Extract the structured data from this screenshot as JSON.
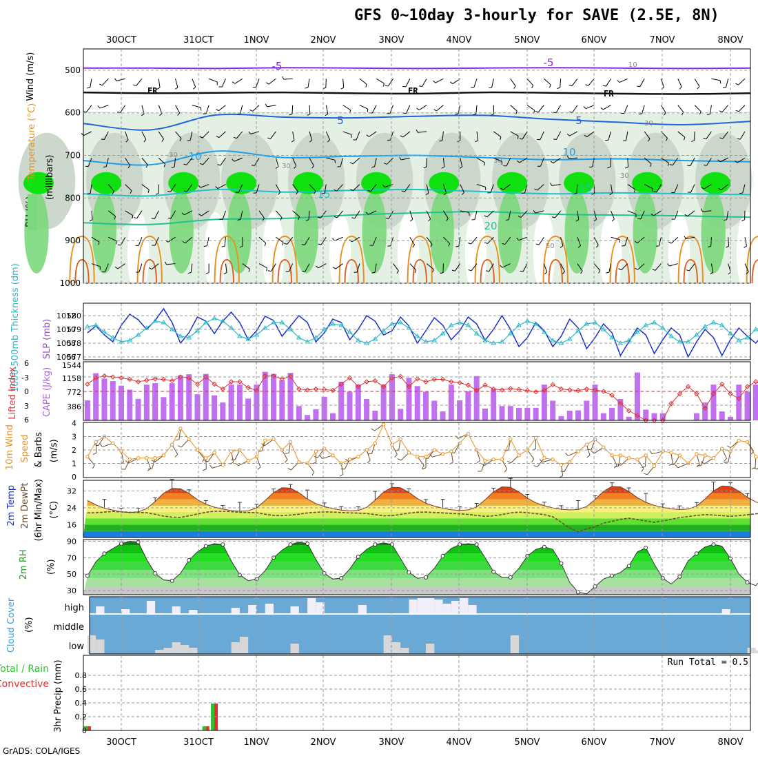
{
  "title": "GFS 0~10day 3-hourly for SAVE (2.5E, 8N)",
  "credit": "GrADS: COLA/IGES",
  "date_labels": [
    "30OCT",
    "31OCT",
    "1NOV",
    "2NOV",
    "3NOV",
    "4NOV",
    "5NOV",
    "6NOV",
    "7NOV",
    "8NOV"
  ],
  "colors": {
    "rh_light": "#e4f0e4",
    "rh_mid": "#c8d4c8",
    "rh_green": "#7cd87c",
    "rh_bright": "#10e010",
    "temp_line_1": "#8a2be2",
    "temp_line_2": "#1e64dc",
    "temp_line_3": "#1e9ee6",
    "temp_line_4": "#20c0c8",
    "temp_line_5": "#20c090",
    "temp_warm": "#e8901e",
    "slp": "#1a2fc8",
    "thickness": "#2ab8c8",
    "cape": "#c070f0",
    "lifted_index": "#e03030",
    "wind": "#e8901e",
    "precip_total": "#30c030",
    "precip_conv": "#e03030",
    "cloud_bg": "#6aa8d6",
    "cloud_white": "#f0eef8",
    "cloud_grey": "#d8d8d8"
  },
  "chart_data": [
    {
      "type": "heatmap",
      "panel": "profile",
      "ylabel": [
        "RH (%)",
        "Temperature (°C)",
        "Wind (m/s)"
      ],
      "yunit": "(millibars)",
      "yticks": [
        500,
        600,
        700,
        800,
        900,
        1000
      ],
      "ylim": [
        1000,
        450
      ],
      "contour_labels": {
        "isotherms": [
          "-5",
          "-5",
          "5",
          "5",
          "10",
          "10",
          "15",
          "15",
          "20"
        ],
        "freezing": [
          "FR",
          "FR",
          "FR"
        ],
        "rh": [
          "10",
          "30",
          "30",
          "30",
          "30",
          "30",
          "50"
        ]
      },
      "isotherms_mb": [
        {
          "label": "-5",
          "values": [
            495,
            495,
            496,
            494,
            495,
            496,
            495,
            494,
            495,
            496,
            495
          ]
        },
        {
          "label": "FR",
          "values": [
            552,
            554,
            553,
            552,
            554,
            555,
            552,
            553,
            555,
            556,
            554
          ]
        },
        {
          "label": "5",
          "values": [
            625,
            640,
            605,
            610,
            612,
            608,
            606,
            615,
            622,
            628,
            620
          ]
        },
        {
          "label": "10",
          "values": [
            712,
            722,
            690,
            705,
            702,
            700,
            705,
            710,
            708,
            712,
            715
          ]
        },
        {
          "label": "15",
          "values": [
            790,
            795,
            780,
            786,
            782,
            780,
            785,
            790,
            788,
            790,
            792
          ]
        },
        {
          "label": "20",
          "values": [
            858,
            862,
            850,
            848,
            840,
            835,
            832,
            838,
            840,
            842,
            845
          ]
        }
      ]
    },
    {
      "type": "line",
      "panel": "slp_thickness",
      "ylabel_left": "1000-500mb Thickness (dm)",
      "ylabel_right": "SLP (mb)",
      "left_ticks": [
        "580",
        "579",
        "578",
        "577"
      ],
      "right_ticks": [
        "1012",
        "1010",
        "1008",
        "1006"
      ],
      "series": [
        {
          "name": "SLP (mb)",
          "values": [
            1009.5,
            1010.5,
            1009.2,
            1008.2,
            1010.6,
            1012.2,
            1011.4,
            1010.0,
            1011.3,
            1013.0,
            1011.0,
            1008.0,
            1009.5,
            1011.8,
            1011.2,
            1009.4,
            1011.2,
            1012.5,
            1011.0,
            1008.5,
            1009.8,
            1011.9,
            1011.3,
            1009.0,
            1010.5,
            1012.0,
            1011.0,
            1008.2,
            1009.5,
            1011.5,
            1011.0,
            1008.5,
            1010.0,
            1012.0,
            1011.2,
            1009.2,
            1009.8,
            1011.8,
            1010.5,
            1008.0,
            1009.8,
            1011.7,
            1010.6,
            1008.5,
            1009.8,
            1011.8,
            1010.8,
            1008.4,
            1010.0,
            1012.0,
            1010.0,
            1007.5,
            1008.8,
            1011.0,
            1009.8,
            1007.5,
            1009.0,
            1011.5,
            1010.2,
            1007.2,
            1008.8,
            1010.8,
            1009.5,
            1006.2,
            1008.2,
            1010.2,
            1009.2,
            1006.5,
            1008.5,
            1010.2,
            1009.2,
            1006.0,
            1008.2,
            1010.0,
            1008.8,
            1006.2,
            1008.5,
            1010.2,
            1009.0,
            1008.0,
            1009.5
          ]
        },
        {
          "name": "1000-500mb Thickness (dm)",
          "values": [
            579.2,
            579.3,
            578.8,
            578.4,
            578.1,
            578.2,
            578.6,
            579.1,
            579.6,
            579.5,
            579.0,
            578.5,
            578.4,
            578.9,
            579.5,
            579.8,
            579.6,
            579.1,
            578.5,
            578.3,
            578.6,
            579.1,
            579.5,
            579.5,
            579.0,
            578.4,
            578.1,
            578.4,
            579.0,
            579.4,
            579.3,
            578.8,
            578.2,
            578.0,
            578.3,
            578.9,
            579.4,
            579.5,
            579.1,
            578.5,
            578.1,
            578.2,
            578.7,
            579.3,
            579.5,
            579.3,
            578.7,
            578.2,
            578.0,
            578.1,
            578.7,
            579.3,
            579.6,
            579.4,
            578.8,
            578.2,
            578.0,
            578.3,
            578.9,
            579.4,
            579.5,
            579.0,
            578.4,
            578.0,
            578.2,
            578.8,
            579.3,
            579.5,
            579.1,
            578.5,
            578.1,
            578.1,
            578.6,
            579.2,
            579.5,
            579.3,
            578.7,
            578.2,
            578.4,
            579.0,
            579.2
          ]
        }
      ]
    },
    {
      "type": "bar",
      "panel": "cape_li",
      "ylabel_left": "Lifted Index",
      "ylabel_right": "CAPE (J/kg)",
      "left_ticks": [
        "6",
        "-3",
        "0",
        "3",
        "6"
      ],
      "right_ticks": [
        "1544",
        "1158",
        "772",
        "386"
      ],
      "series": [
        {
          "name": "CAPE (J/kg)",
          "values": [
            560,
            1320,
            1170,
            1100,
            970,
            860,
            600,
            1000,
            1040,
            650,
            1040,
            1260,
            1290,
            730,
            1300,
            700,
            500,
            1000,
            1000,
            610,
            1000,
            1360,
            1300,
            1120,
            1330,
            400,
            150,
            310,
            660,
            200,
            1080,
            800,
            1000,
            600,
            270,
            1000,
            1290,
            320,
            1190,
            960,
            800,
            550,
            250,
            1000,
            560,
            810,
            1240,
            330,
            880,
            400,
            400,
            350,
            350,
            350,
            1000,
            550,
            120,
            270,
            280,
            550,
            1000,
            200,
            350,
            600,
            100,
            1340,
            300,
            200,
            200,
            0,
            0,
            0,
            200,
            500,
            1000,
            250,
            100,
            1000,
            800,
            1000,
            1200,
            880
          ]
        },
        {
          "name": "Lifted Index",
          "values": [
            -1.5,
            -2.8,
            -3.2,
            -3.0,
            -2.8,
            -2.5,
            -2.0,
            -2.3,
            -2.6,
            -2.5,
            -2.2,
            -3.0,
            -2.8,
            -1.5,
            -3.0,
            -1.5,
            -0.5,
            -2.0,
            -2.0,
            -0.8,
            -0.2,
            -3.2,
            -3.2,
            -2.6,
            -3.1,
            -0.5,
            -0.3,
            -0.5,
            -0.4,
            -0.2,
            -1.5,
            -2.8,
            -1.0,
            -2.0,
            -2.2,
            -1.0,
            -2.8,
            -3.1,
            -1.0,
            -2.6,
            -2.0,
            -2.5,
            -2.5,
            -2.0,
            -1.8,
            -1.3,
            -0.2,
            -1.3,
            -0.5,
            -0.3,
            -0.6,
            -0.4,
            -0.2,
            0.1,
            -0.2,
            -1.4,
            -0.5,
            -0.3,
            -0.2,
            -0.5,
            -0.3,
            0.0,
            0.8,
            2.5,
            4.0,
            5.0,
            6.0,
            6.0,
            6.0,
            2.5,
            0.5,
            -1.0,
            0.5,
            3.5,
            0.5,
            -1.5,
            0.5,
            1.5,
            -1.0,
            -2.0,
            -1.0,
            -1.5
          ]
        }
      ]
    },
    {
      "type": "line",
      "panel": "wind10m",
      "ylabel": [
        "10m Wind",
        "Speed",
        "& Barbs",
        "(m/s)"
      ],
      "yticks": [
        "4",
        "3",
        "2",
        "1",
        "0"
      ],
      "ylim": [
        0,
        4
      ],
      "series": [
        {
          "name": "10m Wind Speed",
          "values": [
            1.5,
            2.6,
            3.0,
            2.5,
            1.9,
            1.3,
            1.4,
            1.4,
            1.4,
            1.6,
            2.4,
            3.6,
            2.8,
            2.0,
            1.4,
            1.8,
            0.9,
            1.9,
            2.0,
            1.2,
            1.5,
            2.7,
            2.8,
            2.0,
            2.6,
            1.1,
            1.0,
            1.9,
            2.1,
            1.6,
            1.0,
            1.3,
            1.5,
            2.0,
            2.5,
            3.9,
            2.4,
            2.8,
            1.8,
            1.5,
            1.5,
            2.0,
            1.7,
            1.9,
            2.5,
            3.2,
            2.0,
            1.2,
            1.3,
            1.3,
            2.8,
            1.6,
            2.0,
            2.9,
            1.4,
            1.3,
            0.9,
            1.1,
            1.9,
            2.4,
            2.8,
            2.2,
            1.6,
            1.6,
            1.4,
            1.3,
            1.6,
            0.8,
            1.9,
            1.8,
            1.6,
            1.0,
            1.7,
            1.6,
            1.4,
            2.1,
            1.9,
            2.7,
            2.6,
            1.5,
            1.2
          ]
        }
      ]
    },
    {
      "type": "area",
      "panel": "temperature2m",
      "ylabel": [
        "2m Temp",
        "2m DewPt",
        "(6hr Min/Max)",
        "(°C)"
      ],
      "yticks": [
        "32",
        "24",
        "16"
      ],
      "ylim": [
        10,
        37
      ],
      "series": [
        {
          "name": "2m Temp",
          "values": [
            27.5,
            25.4,
            23.8,
            22.9,
            22.1,
            21.8,
            22.1,
            23.6,
            27.0,
            30.9,
            33.2,
            33.0,
            30.8,
            27.9,
            25.7,
            24.3,
            23.4,
            22.7,
            22.4,
            22.6,
            24.0,
            27.4,
            31.2,
            33.5,
            33.3,
            31.1,
            28.2,
            26.0,
            24.6,
            23.6,
            22.9,
            22.6,
            22.8,
            24.2,
            27.6,
            31.4,
            33.7,
            33.5,
            31.3,
            28.4,
            26.2,
            24.8,
            23.8,
            23.1,
            22.8,
            23.0,
            24.4,
            27.8,
            31.6,
            33.9,
            33.7,
            31.5,
            28.6,
            26.4,
            25.0,
            24.0,
            23.3,
            23.0,
            23.2,
            24.6,
            28.0,
            31.8,
            34.1,
            33.9,
            31.7,
            28.8,
            26.6,
            25.2,
            24.2,
            23.5,
            23.2,
            23.4,
            24.8,
            28.2,
            32.0,
            34.3,
            34.1,
            31.9,
            29.0,
            26.8,
            25.4
          ]
        },
        {
          "name": "2m DewPt",
          "values": [
            21.6,
            21.7,
            22.0,
            22.3,
            22.1,
            21.9,
            21.8,
            21.7,
            21.0,
            20.1,
            19.6,
            19.5,
            20.2,
            21.1,
            21.9,
            22.4,
            22.4,
            22.2,
            21.9,
            21.8,
            21.7,
            21.0,
            20.4,
            20.3,
            20.6,
            21.0,
            21.6,
            21.9,
            22.1,
            22.0,
            21.8,
            21.6,
            21.5,
            21.3,
            20.8,
            20.2,
            20.3,
            20.9,
            21.5,
            21.9,
            22.0,
            21.8,
            21.6,
            21.4,
            21.2,
            20.9,
            20.4,
            20.0,
            20.2,
            20.8,
            21.6,
            22.0,
            21.7,
            21.3,
            20.8,
            19.8,
            17.2,
            14.5,
            12.6,
            14.1,
            15.0,
            16.8,
            17.6,
            18.6,
            19.1,
            18.5,
            17.8,
            17.2,
            17.8,
            18.6,
            19.4,
            19.9,
            20.4,
            20.8,
            20.6,
            20.3,
            20.0,
            20.3,
            20.7,
            21.2,
            21.6
          ]
        }
      ]
    },
    {
      "type": "area",
      "panel": "rh2m",
      "ylabel": [
        "2m RH",
        "(%)"
      ],
      "yticks": [
        "90",
        "70",
        "50",
        "30"
      ],
      "ylim": [
        25,
        92
      ],
      "series": [
        {
          "name": "2m RH",
          "values": [
            48,
            65,
            75,
            81,
            87,
            90,
            89,
            68,
            51,
            43,
            42,
            51,
            67,
            77,
            84,
            87,
            86,
            66,
            49,
            42,
            44,
            54,
            70,
            79,
            86,
            89,
            87,
            68,
            51,
            44,
            45,
            56,
            71,
            80,
            86,
            88,
            86,
            69,
            52,
            45,
            46,
            57,
            72,
            81,
            86,
            87,
            86,
            70,
            53,
            46,
            46,
            57,
            72,
            80,
            83,
            80,
            63,
            40,
            28,
            26,
            35,
            44,
            48,
            52,
            60,
            77,
            82,
            62,
            45,
            38,
            47,
            66,
            75,
            83,
            86,
            84,
            69,
            50,
            40,
            36,
            48,
            58,
            72,
            83,
            88
          ]
        }
      ]
    },
    {
      "type": "bar",
      "panel": "cloud_cover",
      "ylabel": [
        "Cloud Cover",
        "(%)"
      ],
      "row_labels": [
        "high",
        "middle",
        "low"
      ]
    },
    {
      "type": "bar",
      "panel": "precip",
      "ylabel": [
        "3hr Precip (mm)"
      ],
      "legend": [
        "Total / Rain",
        "Convective"
      ],
      "yticks": [
        "0.8",
        "0.6",
        "0.4",
        "0.2",
        "0"
      ],
      "ylim": [
        0,
        1.0
      ],
      "annotation": "Run Total = 0.5",
      "series": [
        {
          "name": "Total / Rain",
          "values": [
            0.06,
            0,
            0,
            0,
            0,
            0,
            0,
            0,
            0,
            0,
            0,
            0,
            0,
            0,
            0.06,
            0.39
          ]
        },
        {
          "name": "Convective",
          "values": [
            0.06,
            0,
            0,
            0,
            0,
            0,
            0,
            0,
            0,
            0,
            0,
            0,
            0,
            0,
            0.06,
            0.39
          ]
        }
      ]
    }
  ]
}
